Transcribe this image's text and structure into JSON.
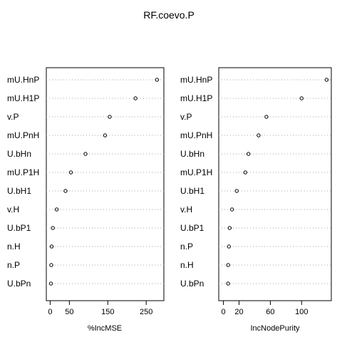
{
  "title": "RF.coevo.P",
  "chart_data": [
    {
      "type": "scatter",
      "xlabel": "%IncMSE",
      "xlim": [
        -10,
        296
      ],
      "xticks": [
        0,
        50,
        150,
        250
      ],
      "grid": "dotted-horizontal",
      "categories": [
        "mU.HnP",
        "mU.H1P",
        "v.P",
        "mU.PnH",
        "U.bHn",
        "mU.P1H",
        "U.bH1",
        "v.H",
        "U.bP1",
        "n.H",
        "n.P",
        "U.bPn"
      ],
      "values": [
        278,
        222,
        155,
        143,
        92,
        54,
        40,
        17,
        7,
        4,
        3,
        2
      ]
    },
    {
      "type": "scatter",
      "xlabel": "IncNodePurity",
      "xlim": [
        -6,
        138
      ],
      "xticks": [
        0,
        20,
        60,
        100
      ],
      "tick_labels": [
        "0",
        "20",
        "60",
        "100"
      ],
      "grid": "dotted-horizontal",
      "categories": [
        "mU.HnP",
        "mU.H1P",
        "v.P",
        "mU.PnH",
        "U.bHn",
        "mU.P1H",
        "U.bH1",
        "v.H",
        "U.bP1",
        "n.P",
        "n.H",
        "U.bPn"
      ],
      "values": [
        132,
        100,
        55,
        45,
        32,
        28,
        17,
        11,
        8,
        7,
        6,
        6
      ]
    }
  ]
}
